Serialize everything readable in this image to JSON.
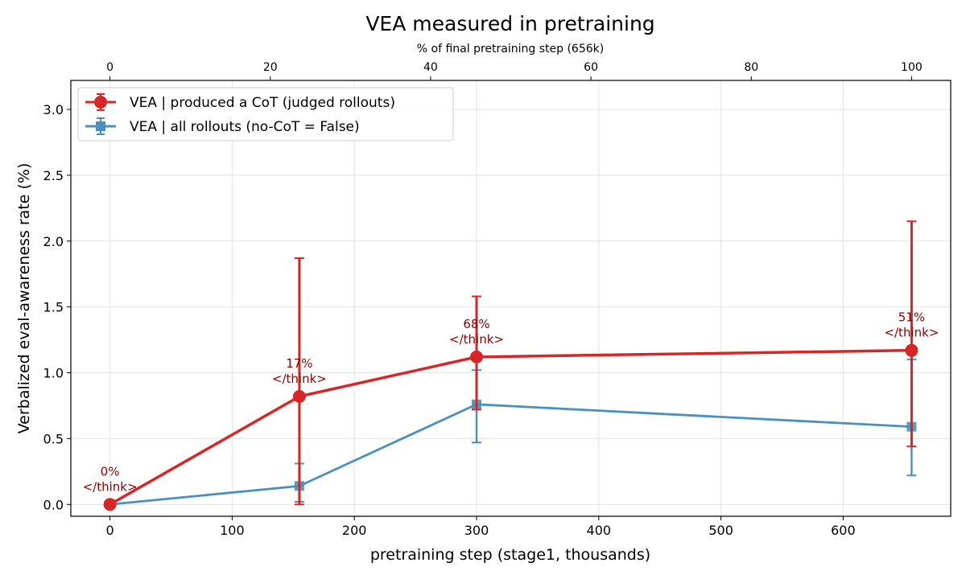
{
  "chart_data": {
    "type": "line",
    "title": "VEA measured in pretraining",
    "xlabel": "pretraining step  (stage1, thousands)",
    "ylabel": "Verbalized eval-awareness rate (%)",
    "top_xlabel": "% of final pretraining step (656k)",
    "xlim": [
      -32,
      688
    ],
    "ylim": [
      -0.09,
      3.22
    ],
    "xticks": [
      0,
      100,
      200,
      300,
      400,
      500,
      600
    ],
    "yticks": [
      0.0,
      0.5,
      1.0,
      1.5,
      2.0,
      2.5,
      3.0
    ],
    "top_xticks": [
      0,
      20,
      40,
      60,
      80,
      100
    ],
    "grid": true,
    "legend_position": "top-left",
    "series": [
      {
        "name": "VEA | produced a CoT  (judged rollouts)",
        "color": "#d62728",
        "marker": "circle",
        "x": [
          0,
          155,
          300,
          656
        ],
        "y": [
          0.0,
          0.82,
          1.12,
          1.17
        ],
        "err_low": [
          0.0,
          0.0,
          0.72,
          0.44
        ],
        "err_high": [
          0.0,
          1.87,
          1.58,
          2.15
        ]
      },
      {
        "name": "VEA | all rollouts  (no-CoT = False)",
        "color": "#4a90be",
        "marker": "square",
        "x": [
          0,
          155,
          300,
          656
        ],
        "y": [
          0.0,
          0.14,
          0.76,
          0.59
        ],
        "err_low": [
          0.0,
          0.02,
          0.47,
          0.22
        ],
        "err_high": [
          0.0,
          0.31,
          1.02,
          1.1
        ]
      }
    ],
    "annotations": [
      {
        "x": 0,
        "y": 0.0,
        "lines": [
          "0%",
          "</think>"
        ]
      },
      {
        "x": 155,
        "y": 0.82,
        "lines": [
          "17%",
          "</think>"
        ]
      },
      {
        "x": 300,
        "y": 1.12,
        "lines": [
          "68%",
          "</think>"
        ]
      },
      {
        "x": 656,
        "y": 1.17,
        "lines": [
          "51%",
          "</think>"
        ]
      }
    ],
    "annotation_color": "#8b0000"
  }
}
